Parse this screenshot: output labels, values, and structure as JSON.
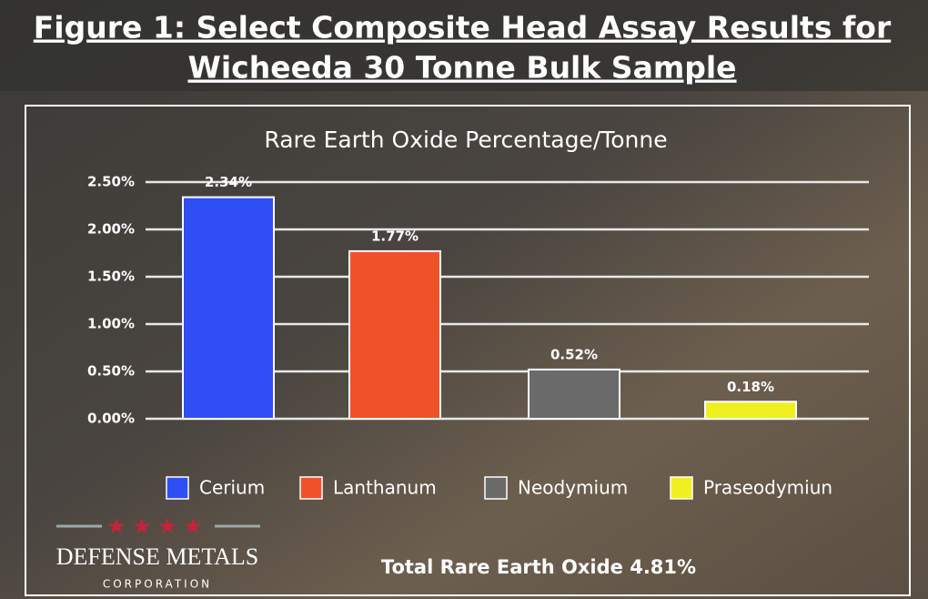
{
  "chart_data": {
    "type": "bar",
    "figure_title": [
      "Figure 1: Select Composite Head Assay Results for",
      "Wicheeda 30 Tonne Bulk Sample"
    ],
    "title": "Rare Earth Oxide Percentage/Tonne",
    "series": [
      {
        "name": "Cerium",
        "color": "#2f4ff5",
        "values": [
          2.34
        ],
        "value_labels": [
          "2.34%"
        ]
      },
      {
        "name": "Lanthanum",
        "color": "#ef5228",
        "values": [
          1.77
        ],
        "value_labels": [
          "1.77%"
        ]
      },
      {
        "name": "Neodymium",
        "color": "#6a6a6a",
        "values": [
          0.52
        ],
        "value_labels": [
          "0.52%"
        ]
      },
      {
        "name": "Praseodymiun",
        "color": "#f0f020",
        "values": [
          0.18
        ],
        "value_labels": [
          "0.18%"
        ]
      }
    ],
    "ylim": [
      0,
      2.5
    ],
    "yticks": [
      {
        "value": 0,
        "label": "0.00%"
      },
      {
        "value": 0.5,
        "label": "0.50%"
      },
      {
        "value": 1,
        "label": "1.00%"
      },
      {
        "value": 1.5,
        "label": "1.50%"
      },
      {
        "value": 2,
        "label": "2.00%"
      },
      {
        "value": 2.5,
        "label": "2.50%"
      }
    ],
    "grid": true,
    "annotation": "Total Rare Earth Oxide 4.81%",
    "logo": {
      "name": "DEFENSE METALS",
      "subtitle": "CORPORATION"
    }
  }
}
